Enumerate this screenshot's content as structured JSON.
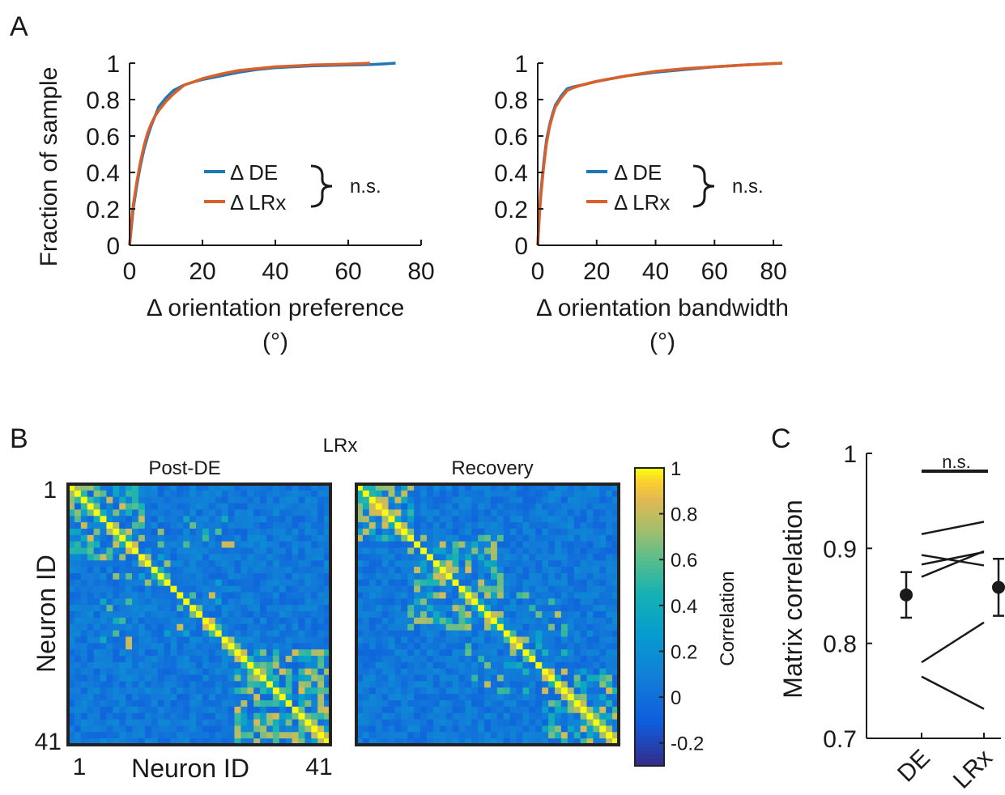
{
  "panel_labels": {
    "a": "A",
    "b": "B",
    "c": "C"
  },
  "colors": {
    "de": "#1f77b4",
    "lrx": "#d95f2b"
  },
  "chart_data": [
    {
      "id": "A-left",
      "type": "line",
      "title": "",
      "xlabel": "Δ orientation preference",
      "xlabel_unit": "(°)",
      "ylabel": "Fraction of sample",
      "xlim": [
        0,
        80
      ],
      "ylim": [
        0,
        1
      ],
      "x_ticks": [
        "0",
        "20",
        "40",
        "60",
        "80"
      ],
      "y_ticks": [
        "0",
        "0.2",
        "0.4",
        "0.6",
        "0.8",
        "1"
      ],
      "legend": [
        "Δ DE",
        "Δ LRx"
      ],
      "annotation": "n.s.",
      "series": [
        {
          "name": "Δ DE",
          "color": "#1f77b4",
          "x": [
            0,
            0.5,
            1,
            2,
            3,
            4,
            5,
            6,
            7,
            8,
            10,
            12,
            15,
            18,
            20,
            25,
            30,
            35,
            40,
            50,
            60,
            66,
            70,
            73
          ],
          "y": [
            0,
            0.1,
            0.2,
            0.33,
            0.44,
            0.53,
            0.6,
            0.66,
            0.71,
            0.76,
            0.81,
            0.85,
            0.88,
            0.9,
            0.91,
            0.93,
            0.95,
            0.965,
            0.975,
            0.985,
            0.99,
            0.992,
            0.996,
            1.0
          ]
        },
        {
          "name": "Δ LRx",
          "color": "#d95f2b",
          "x": [
            0,
            0.5,
            1,
            2,
            3,
            4,
            5,
            6,
            7,
            8,
            10,
            12,
            15,
            18,
            20,
            25,
            30,
            35,
            40,
            50,
            60,
            66
          ],
          "y": [
            0,
            0.12,
            0.22,
            0.35,
            0.46,
            0.55,
            0.62,
            0.67,
            0.71,
            0.74,
            0.79,
            0.83,
            0.88,
            0.9,
            0.915,
            0.94,
            0.96,
            0.97,
            0.98,
            0.99,
            0.995,
            1.0
          ]
        }
      ]
    },
    {
      "id": "A-right",
      "type": "line",
      "title": "",
      "xlabel": "Δ orientation bandwidth",
      "xlabel_unit": "(°)",
      "ylabel": "",
      "xlim": [
        0,
        83
      ],
      "ylim": [
        0,
        1
      ],
      "x_ticks": [
        "0",
        "20",
        "40",
        "60",
        "80"
      ],
      "y_ticks": [
        "0",
        "0.2",
        "0.4",
        "0.6",
        "0.8",
        "1"
      ],
      "legend": [
        "Δ DE",
        "Δ LRx"
      ],
      "annotation": "n.s.",
      "series": [
        {
          "name": "Δ DE",
          "color": "#1f77b4",
          "x": [
            0,
            0.5,
            1,
            2,
            3,
            4,
            5,
            6,
            8,
            10,
            12,
            15,
            20,
            25,
            30,
            40,
            50,
            60,
            70,
            83
          ],
          "y": [
            0,
            0.15,
            0.28,
            0.45,
            0.58,
            0.66,
            0.72,
            0.77,
            0.82,
            0.86,
            0.87,
            0.88,
            0.9,
            0.915,
            0.93,
            0.95,
            0.965,
            0.98,
            0.99,
            1.0
          ]
        },
        {
          "name": "Δ LRx",
          "color": "#d95f2b",
          "x": [
            0,
            0.5,
            1,
            2,
            3,
            4,
            5,
            6,
            8,
            10,
            12,
            15,
            20,
            25,
            30,
            40,
            50,
            60,
            70,
            83
          ],
          "y": [
            0,
            0.14,
            0.26,
            0.43,
            0.56,
            0.65,
            0.71,
            0.76,
            0.81,
            0.85,
            0.865,
            0.88,
            0.9,
            0.915,
            0.93,
            0.955,
            0.97,
            0.98,
            0.99,
            1.0
          ]
        }
      ]
    },
    {
      "id": "B",
      "type": "heatmap",
      "title": "LRx",
      "matrices": [
        {
          "subtitle": "Post-DE",
          "seed": 11
        },
        {
          "subtitle": "Recovery",
          "seed": 37
        }
      ],
      "n": 41,
      "ylabel": "Neuron ID",
      "xlabel": "Neuron ID",
      "axis_ticks": [
        "1",
        "41"
      ],
      "colorbar_label": "Correlation",
      "colorbar_range": [
        -0.3,
        1
      ],
      "colorbar_ticks": [
        "1",
        "0.8",
        "0.6",
        "0.4",
        "0.2",
        "0",
        "-0.2"
      ],
      "colorbar_tick_values": [
        1,
        0.8,
        0.6,
        0.4,
        0.2,
        0,
        -0.2
      ]
    },
    {
      "id": "C",
      "type": "scatter",
      "ylabel": "Matrix correlation",
      "categories": [
        "DE",
        "LRx"
      ],
      "ylim": [
        0.7,
        1
      ],
      "y_ticks": [
        "0.7",
        "0.8",
        "0.9",
        "1"
      ],
      "y_tick_values": [
        0.7,
        0.8,
        0.9,
        1
      ],
      "annotation": "n.s.",
      "pairs": [
        [
          0.915,
          0.928
        ],
        [
          0.883,
          0.896
        ],
        [
          0.893,
          0.882
        ],
        [
          0.87,
          0.897
        ],
        [
          0.78,
          0.822
        ],
        [
          0.765,
          0.731
        ]
      ],
      "means": [
        0.851,
        0.859
      ],
      "errors": [
        0.024,
        0.03
      ]
    }
  ]
}
